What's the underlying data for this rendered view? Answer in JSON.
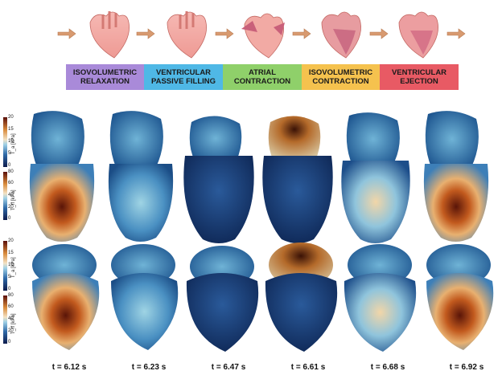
{
  "phases": [
    {
      "label": "ISOVOLUMETRIC RELAXATION",
      "color": "#a98ad9"
    },
    {
      "label": "VENTRICULAR PASSIVE FILLING",
      "color": "#4fb8e6"
    },
    {
      "label": "ATRIAL CONTRACTION",
      "color": "#8fd06a"
    },
    {
      "label": "ISOVOLUMETRIC CONTRACTION",
      "color": "#f5c24e"
    },
    {
      "label": "VENTRICULAR EJECTION",
      "color": "#e85a64"
    }
  ],
  "colorbars": {
    "ta": {
      "label": "T_a [kPa]",
      "ticks": [
        "20",
        "15",
        "10",
        "5",
        "0"
      ]
    },
    "tff": {
      "label": "T_ff [kPa]",
      "ticks": [
        "80",
        "60",
        "40",
        "20",
        "0"
      ]
    }
  },
  "times": [
    "t = 6.12 s",
    "t = 6.23 s",
    "t = 6.47 s",
    "t = 6.61 s",
    "t = 6.68 s",
    "t = 6.92 s"
  ]
}
